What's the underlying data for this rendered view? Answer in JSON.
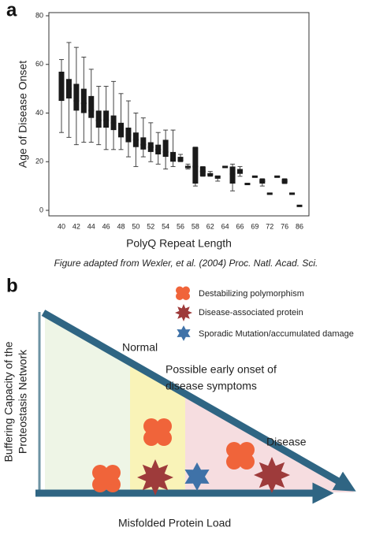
{
  "panel_labels": [
    "a",
    "b"
  ],
  "chart_data": {
    "type": "box",
    "ylabel": "Age of Disease Onset",
    "xlabel": "PolyQ Repeat Length",
    "categories": [
      "40",
      null,
      "42",
      null,
      "44",
      null,
      "46",
      null,
      "48",
      null,
      "50",
      null,
      "52",
      null,
      "54",
      null,
      "56",
      null,
      "58",
      null,
      "62",
      null,
      "64",
      null,
      "66",
      null,
      "69",
      null,
      "72",
      null,
      "76",
      null,
      "86"
    ],
    "boxes": [
      {
        "low": 32,
        "q1": 45,
        "median": 53,
        "q3": 57,
        "high": 62
      },
      {
        "low": 30,
        "q1": 46,
        "median": 50,
        "q3": 54,
        "high": 69
      },
      {
        "low": 27,
        "q1": 41,
        "median": 45,
        "q3": 52,
        "high": 67
      },
      {
        "low": 28,
        "q1": 40,
        "median": 44,
        "q3": 50,
        "high": 63
      },
      {
        "low": 28,
        "q1": 38,
        "median": 41,
        "q3": 47,
        "high": 58
      },
      {
        "low": 27,
        "q1": 34,
        "median": 37,
        "q3": 41,
        "high": 51
      },
      {
        "low": 25,
        "q1": 34,
        "median": 37,
        "q3": 41,
        "high": 51
      },
      {
        "low": 25,
        "q1": 33,
        "median": 36,
        "q3": 39,
        "high": 53
      },
      {
        "low": 25,
        "q1": 30,
        "median": 33,
        "q3": 36,
        "high": 48
      },
      {
        "low": 22,
        "q1": 28,
        "median": 31,
        "q3": 34,
        "high": 45
      },
      {
        "low": 18,
        "q1": 26,
        "median": 29,
        "q3": 32,
        "high": 40
      },
      {
        "low": 22,
        "q1": 25,
        "median": 27,
        "q3": 30,
        "high": 38
      },
      {
        "low": 20,
        "q1": 24,
        "median": 26,
        "q3": 28,
        "high": 36
      },
      {
        "low": 19,
        "q1": 23,
        "median": 25,
        "q3": 27,
        "high": 32
      },
      {
        "low": 17,
        "q1": 22,
        "median": 24,
        "q3": 29,
        "high": 33
      },
      {
        "low": 18,
        "q1": 20,
        "median": 21,
        "q3": 24,
        "high": 33
      },
      {
        "low": 20,
        "q1": 20,
        "median": 21,
        "q3": 22,
        "high": 23
      },
      {
        "low": 17,
        "q1": 18,
        "median": 18,
        "q3": 18,
        "high": 19
      },
      {
        "low": 10,
        "q1": 11,
        "median": 18,
        "q3": 26,
        "high": 26
      },
      {
        "low": 14,
        "q1": 14,
        "median": 16,
        "q3": 18,
        "high": 18
      },
      {
        "low": 14,
        "q1": 14,
        "median": 15,
        "q3": 15,
        "high": 16
      },
      {
        "low": 12,
        "q1": 13,
        "median": 14,
        "q3": 14,
        "high": 14
      },
      {
        "low": 18,
        "q1": 18,
        "median": 18,
        "q3": 18,
        "high": 18
      },
      {
        "low": 8,
        "q1": 11,
        "median": 15,
        "q3": 18,
        "high": 19
      },
      {
        "low": 14,
        "q1": 15,
        "median": 16,
        "q3": 17,
        "high": 18
      },
      {
        "low": 11,
        "q1": 11,
        "median": 11,
        "q3": 11,
        "high": 11
      },
      {
        "low": 14,
        "q1": 14,
        "median": 14,
        "q3": 14,
        "high": 14
      },
      {
        "low": 10,
        "q1": 11,
        "median": 12,
        "q3": 13,
        "high": 13
      },
      {
        "low": 7,
        "q1": 7,
        "median": 7,
        "q3": 7,
        "high": 7
      },
      {
        "low": 14,
        "q1": 14,
        "median": 14,
        "q3": 14,
        "high": 14
      },
      {
        "low": 11,
        "q1": 11,
        "median": 12,
        "q3": 13,
        "high": 13
      },
      {
        "low": 7,
        "q1": 7,
        "median": 7,
        "q3": 7,
        "high": 7
      },
      {
        "low": 2,
        "q1": 2,
        "median": 2,
        "q3": 2,
        "high": 2
      }
    ],
    "color": "#1a1a1a",
    "ylim": [
      0,
      80
    ],
    "yticks": [
      0,
      20,
      40,
      60,
      80
    ]
  },
  "caption": "Figure adapted from Wexler, et al. (2004) Proc. Natl. Acad. Sci.",
  "panel_b": {
    "legend": [
      "Destabilizing polymorphism",
      "Disease-associated protein",
      "Sporadic Mutation/accumulated damage"
    ],
    "normal": "Normal",
    "early_onset": [
      "Possible early onset of",
      "disease symptoms"
    ],
    "disease": "Disease",
    "ylabel": [
      "Buffering Capacity of the",
      "Proteostasis Network"
    ],
    "xlabel": "Misfolded Protein Load"
  }
}
